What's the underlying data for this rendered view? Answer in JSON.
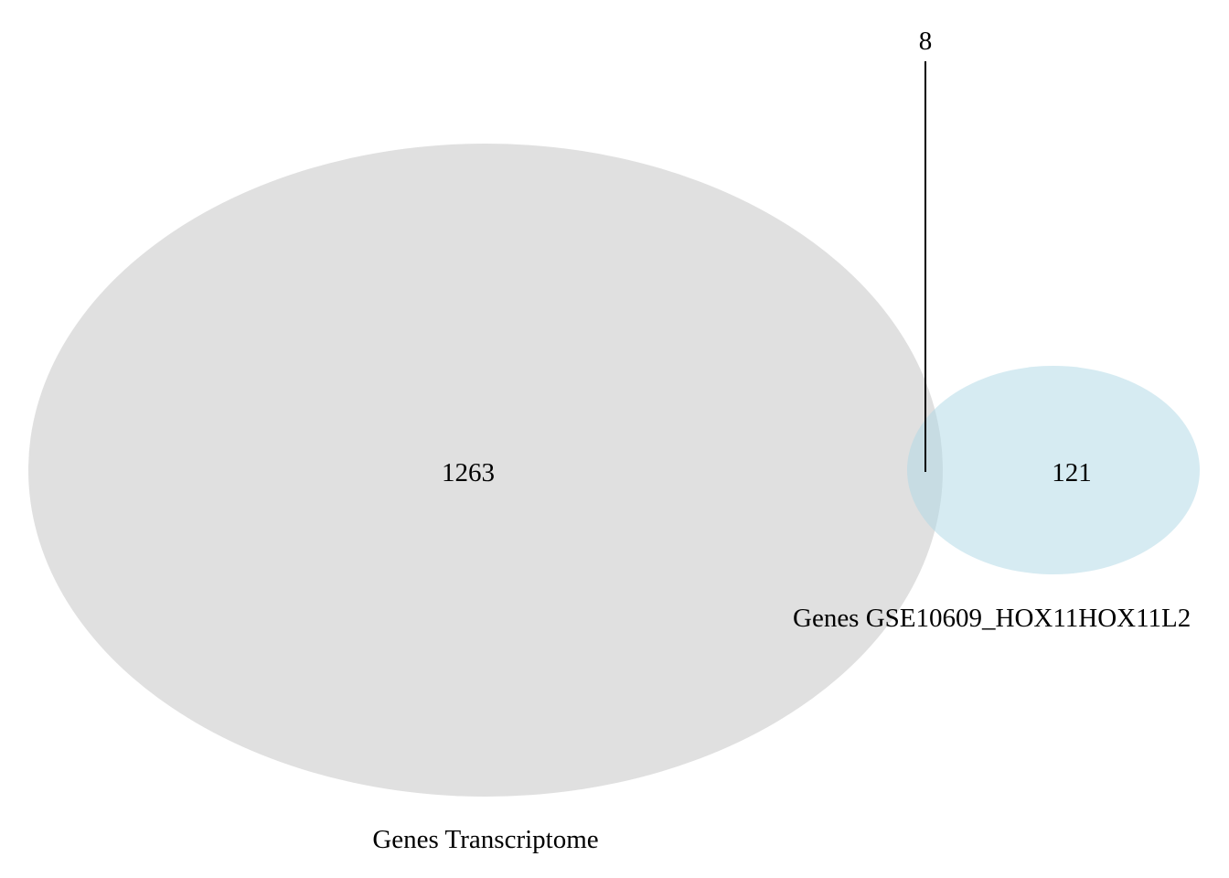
{
  "colors": {
    "background": "#ffffff",
    "set_a_fill": "#d3d3d3",
    "set_b_fill": "#add8e6",
    "text": "#000000",
    "leader_line": "#000000"
  },
  "sets": [
    {
      "name": "Genes Transcriptome",
      "only_count": "1263"
    },
    {
      "name": "Genes GSE10609_HOX11HOX11L2",
      "only_count": "121"
    }
  ],
  "intersection": {
    "count": "8"
  }
}
